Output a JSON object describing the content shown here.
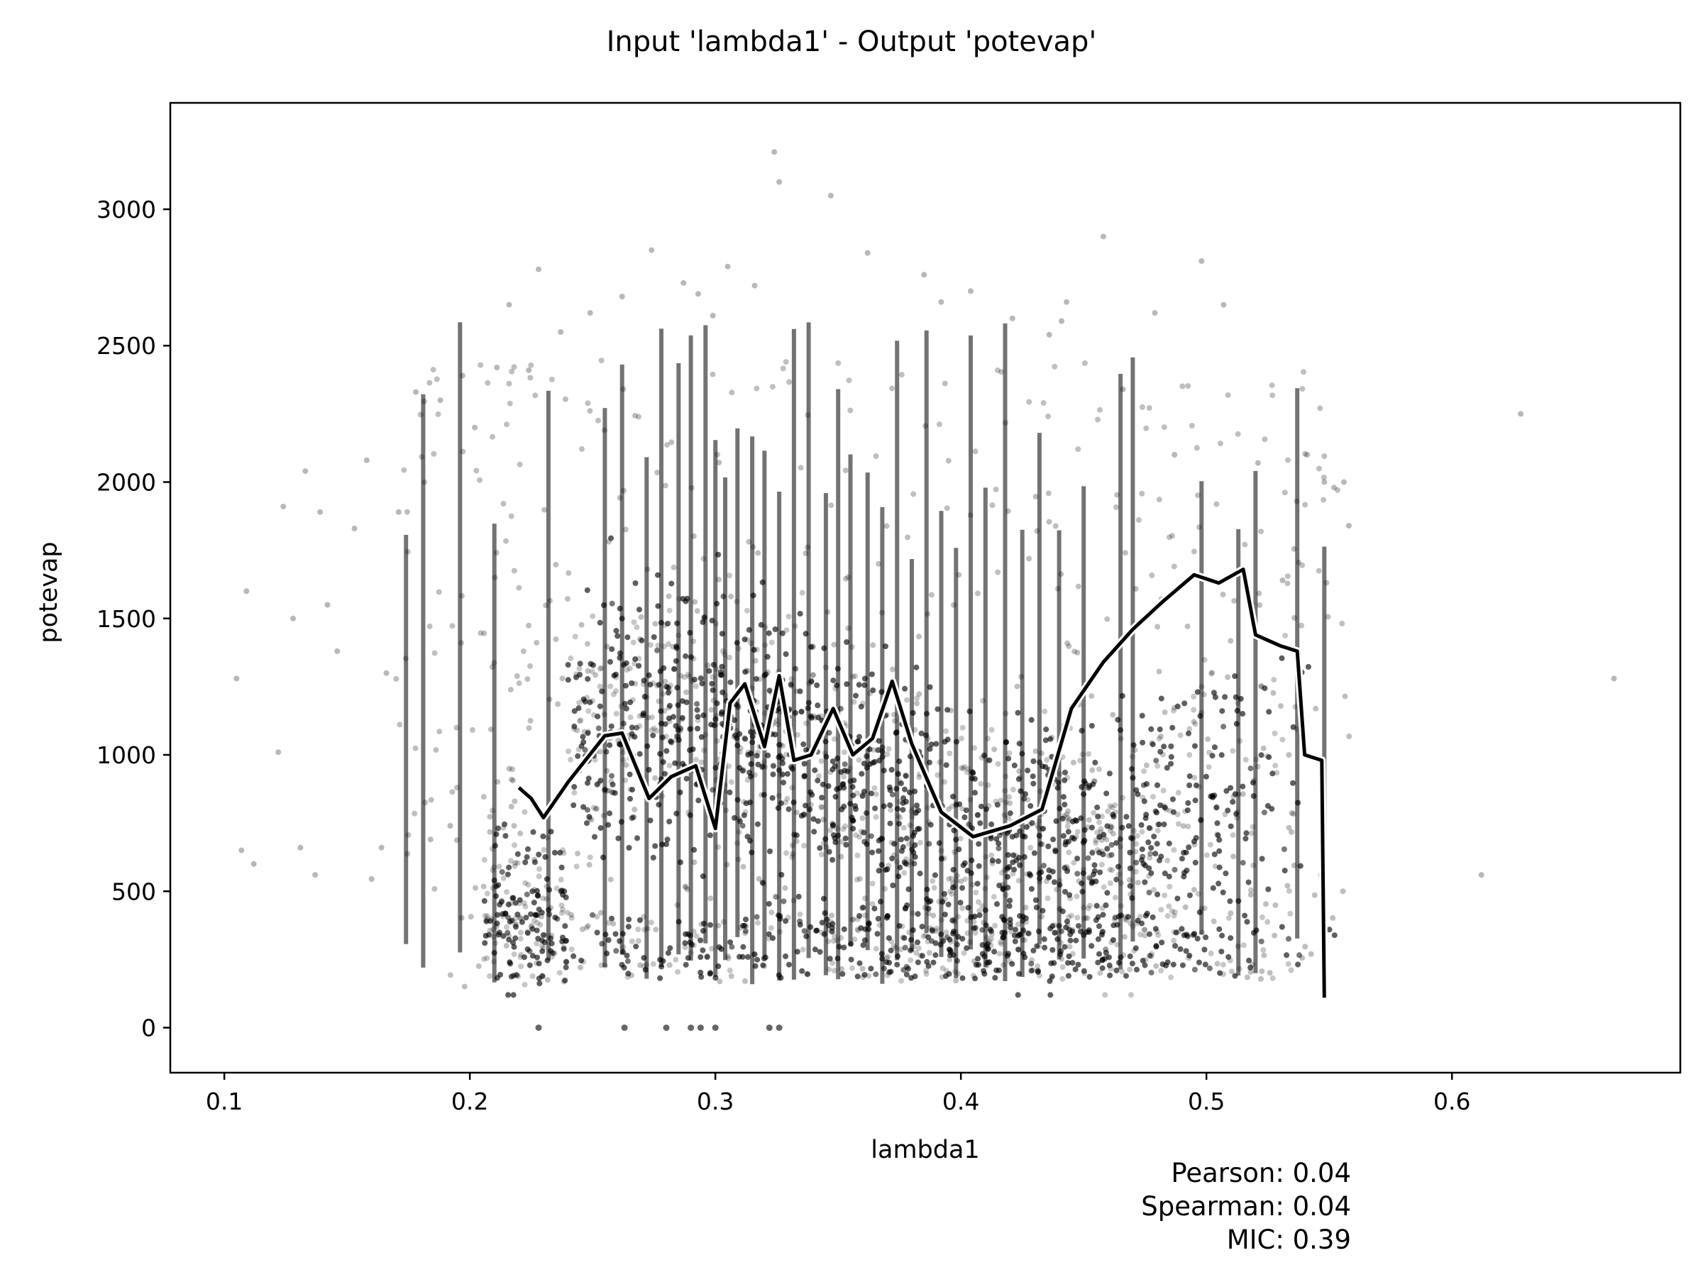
{
  "chart_data": {
    "type": "scatter",
    "title": "Input 'lambda1' - Output 'potevap'",
    "xlabel": "lambda1",
    "ylabel": "potevap",
    "xlim": [
      0.078,
      0.693
    ],
    "ylim": [
      -165,
      3390
    ],
    "xticks": [
      {
        "value": 0.1,
        "label": "0.1"
      },
      {
        "value": 0.2,
        "label": "0.2"
      },
      {
        "value": 0.3,
        "label": "0.3"
      },
      {
        "value": 0.4,
        "label": "0.4"
      },
      {
        "value": 0.5,
        "label": "0.5"
      },
      {
        "value": 0.6,
        "label": "0.6"
      }
    ],
    "yticks": [
      {
        "value": 0,
        "label": "0"
      },
      {
        "value": 500,
        "label": "500"
      },
      {
        "value": 1000,
        "label": "1000"
      },
      {
        "value": 1500,
        "label": "1500"
      },
      {
        "value": 2000,
        "label": "2000"
      },
      {
        "value": 2500,
        "label": "2500"
      },
      {
        "value": 3000,
        "label": "3000"
      }
    ],
    "grid": false,
    "point_color": "#000000",
    "scatter_points": {
      "x": [
        0.105,
        0.107,
        0.109,
        0.112,
        0.122,
        0.124,
        0.128,
        0.131,
        0.133,
        0.137,
        0.139,
        0.142,
        0.146,
        0.153,
        0.158,
        0.16,
        0.164,
        0.166,
        0.171,
        0.178,
        0.184,
        0.188,
        0.192,
        0.197,
        0.202,
        0.211,
        0.216,
        0.224,
        0.228,
        0.237,
        0.249,
        0.262,
        0.274,
        0.287,
        0.293,
        0.299,
        0.305,
        0.316,
        0.324,
        0.326,
        0.347,
        0.362,
        0.385,
        0.392,
        0.404,
        0.421,
        0.436,
        0.441,
        0.443,
        0.458,
        0.466,
        0.479,
        0.487,
        0.498,
        0.507,
        0.521,
        0.531,
        0.541,
        0.548,
        0.552,
        0.556,
        0.558,
        0.612,
        0.628,
        0.666
      ],
      "y": [
        1280,
        650,
        1600,
        600,
        1010,
        1910,
        1500,
        660,
        2040,
        560,
        1890,
        1550,
        1380,
        1830,
        2080,
        545,
        660,
        1300,
        1890,
        2330,
        690,
        2300,
        740,
        2390,
        2200,
        2420,
        2650,
        2410,
        2780,
        2550,
        2620,
        2680,
        2850,
        2730,
        2690,
        2610,
        2790,
        2720,
        3210,
        3100,
        3050,
        2840,
        2760,
        2660,
        2700,
        2600,
        2540,
        2590,
        2660,
        2900,
        2340,
        2620,
        2100,
        2810,
        2650,
        2070,
        1640,
        2100,
        2000,
        1980,
        2000,
        1840,
        560,
        2250,
        1280
      ]
    },
    "trend_line": {
      "x": [
        0.22,
        0.225,
        0.23,
        0.24,
        0.255,
        0.262,
        0.273,
        0.282,
        0.292,
        0.3,
        0.306,
        0.312,
        0.32,
        0.326,
        0.332,
        0.339,
        0.348,
        0.356,
        0.364,
        0.372,
        0.38,
        0.392,
        0.405,
        0.42,
        0.433,
        0.445,
        0.458,
        0.47,
        0.482,
        0.495,
        0.505,
        0.515,
        0.52,
        0.53,
        0.537,
        0.54,
        0.547,
        0.548
      ],
      "y": [
        880,
        840,
        770,
        900,
        1070,
        1080,
        840,
        920,
        960,
        730,
        1190,
        1260,
        1030,
        1290,
        980,
        1000,
        1170,
        1000,
        1060,
        1270,
        1040,
        790,
        700,
        740,
        800,
        1170,
        1340,
        1460,
        1560,
        1660,
        1630,
        1680,
        1440,
        1400,
        1380,
        1000,
        980,
        110
      ]
    },
    "annotations": {
      "pearson": "Pearson: 0.04",
      "spearman": "Spearman: 0.04",
      "mic": "MIC: 0.39"
    }
  }
}
